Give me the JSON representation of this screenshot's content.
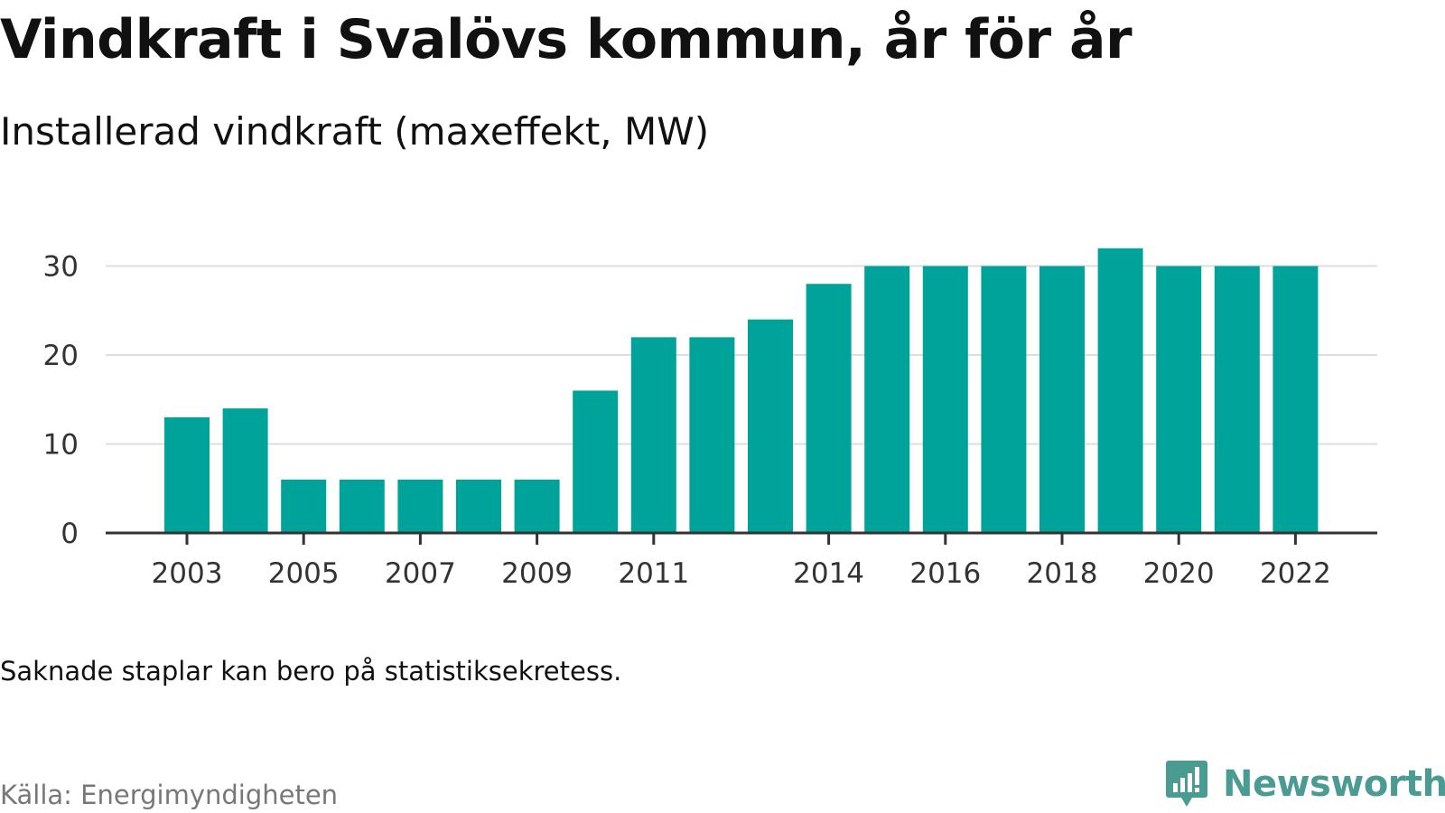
{
  "title": "Vindkraft i Svalövs kommun, år för år",
  "subtitle": "Installerad vindkraft (maxeffekt, MW)",
  "note": "Saknade staplar kan bero på statistiksekretess.",
  "source": "Källa: Energimyndigheten",
  "brand": {
    "name": "Newsworthy",
    "logo_icon": "bar-chart-speech-bubble-icon",
    "color": "#4a9b92"
  },
  "colors": {
    "bar": "#00a39a",
    "grid": "#dddddd",
    "axis": "#333333"
  },
  "chart_data": {
    "type": "bar",
    "categories": [
      "2003",
      "2004",
      "2005",
      "2006",
      "2007",
      "2008",
      "2009",
      "2010",
      "2011",
      "2012",
      "2013",
      "2014",
      "2015",
      "2016",
      "2017",
      "2018",
      "2019",
      "2020",
      "2021",
      "2022"
    ],
    "values": [
      13,
      14,
      6,
      6,
      6,
      6,
      6,
      16,
      22,
      22,
      24,
      28,
      30,
      30,
      30,
      30,
      32,
      30,
      30,
      30
    ],
    "x_tick_labels": [
      "2003",
      "2005",
      "2007",
      "2009",
      "2011",
      "2014",
      "2016",
      "2018",
      "2020",
      "2022"
    ],
    "y_ticks": [
      0,
      10,
      20,
      30
    ],
    "ylim": [
      0,
      33
    ],
    "xlabel": "",
    "ylabel": "",
    "grid": true,
    "legend": "none"
  }
}
